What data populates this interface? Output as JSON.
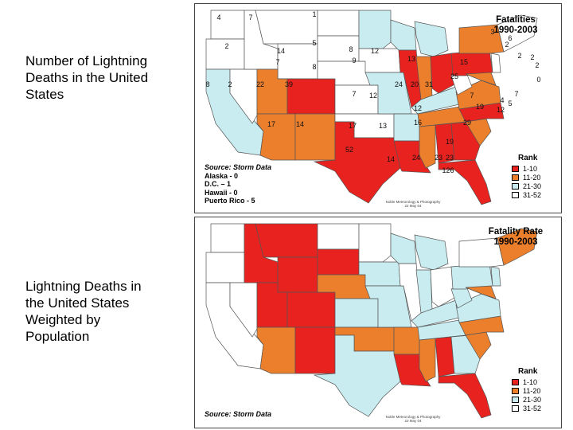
{
  "captions": {
    "top": "Number of Lightning\nDeaths in the United\nStates",
    "bottom": "Lightning Deaths in\nthe United States\nWeighted by\nPopulation"
  },
  "colors": {
    "rank_1_10": "#e8221e",
    "rank_11_20": "#ec7f2c",
    "rank_21_30": "#c8ecf0",
    "rank_31_52": "#ffffff",
    "state_border": "#555555"
  },
  "map_top": {
    "title_line1": "Fatalities",
    "title_line2": "1990-2003",
    "source_title": "Source: Storm Data",
    "source_lines": [
      "Alaska - 0",
      "D.C. – 1",
      "Hawaii - 0",
      "Puerto Rico - 5"
    ],
    "credit_line1": "Noble Meteorology & Photography",
    "credit_line2": "22 May 04",
    "legend_title": "Rank",
    "legend": [
      "1-10",
      "11-20",
      "21-30",
      "31-52"
    ],
    "state_values": [
      "4",
      "7",
      "1",
      "2",
      "5",
      "14",
      "8",
      "12",
      "7",
      "8",
      "9",
      "13",
      "15",
      "6",
      "3",
      "2",
      "2",
      "2",
      "2",
      "0",
      "8",
      "2",
      "22",
      "39",
      "7",
      "12",
      "24",
      "20",
      "31",
      "25",
      "7",
      "4",
      "7",
      "5",
      "12",
      "19",
      "12",
      "17",
      "14",
      "17",
      "13",
      "16",
      "29",
      "52",
      "14",
      "24",
      "23",
      "19",
      "23",
      "126"
    ]
  },
  "map_bottom": {
    "title_line1": "Fatality Rate",
    "title_line2": "1990-2003",
    "source_title": "Source: Storm Data",
    "credit_line1": "Noble Meteorology & Photography",
    "credit_line2": "22 May 04",
    "legend_title": "Rank",
    "legend": [
      "1-10",
      "11-20",
      "21-30",
      "31-52"
    ]
  }
}
